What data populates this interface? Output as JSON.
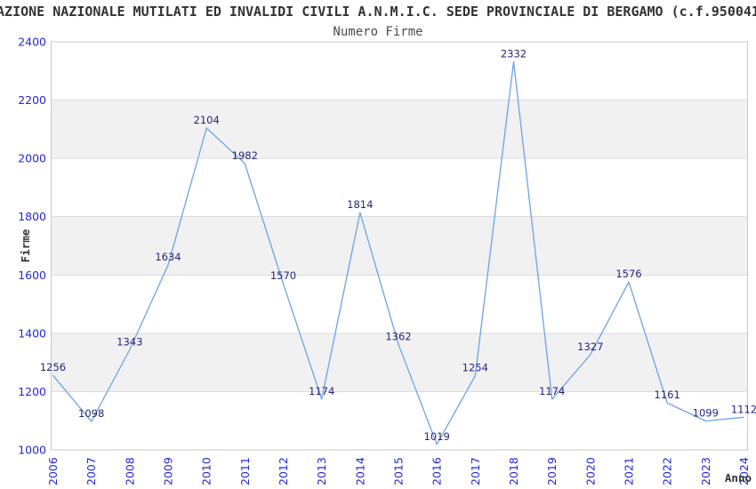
{
  "chart_data": {
    "type": "line",
    "title": "AZIONE NAZIONALE MUTILATI ED INVALIDI CIVILI A.N.M.I.C. SEDE PROVINCIALE DI BERGAMO (c.f.950041",
    "subtitle": "Numero Firme",
    "xlabel": "Anno",
    "ylabel": "Firme",
    "x": [
      2006,
      2007,
      2008,
      2009,
      2010,
      2011,
      2012,
      2013,
      2014,
      2015,
      2016,
      2017,
      2018,
      2019,
      2020,
      2021,
      2022,
      2023,
      2024
    ],
    "values": [
      1256,
      1098,
      1343,
      1634,
      2104,
      1982,
      1570,
      1174,
      1814,
      1362,
      1019,
      1254,
      2332,
      1174,
      1327,
      1576,
      1161,
      1099,
      1112
    ],
    "ylim": [
      1000,
      2400
    ],
    "ytick_step": 200,
    "yticks": [
      1000,
      1200,
      1400,
      1600,
      1800,
      2000,
      2200,
      2400
    ],
    "grid": "horizontal alternating bands",
    "legend_position": "none",
    "data_labels_visible": true,
    "colors": {
      "line": "#6ea3e4",
      "band_fill": "#f1f1f1",
      "gridline": "#dcdcdc",
      "plot_border": "#c9c9c9",
      "axis_tick_label": "#2626d9",
      "data_label": "#25257d",
      "title": "#333333",
      "subtitle": "#4d4d4d",
      "axis_title": "#333333",
      "background": "#ffffff"
    }
  }
}
